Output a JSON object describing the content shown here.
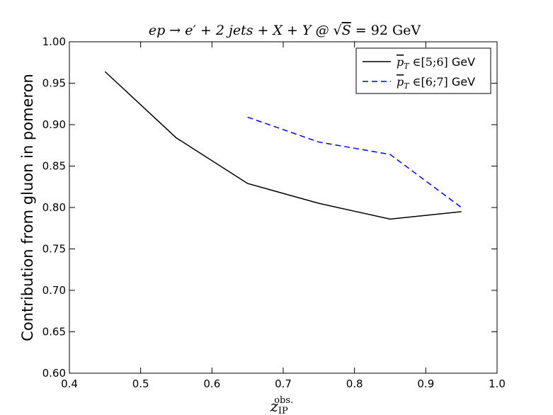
{
  "chart_data": {
    "type": "line",
    "title": "ep → e′ + 2 jets + X + Y @ √S = 92 GeV",
    "title_parts": {
      "process": "ep → e′ + 2 jets + X + Y @ ",
      "sqrt": "S",
      "energy": " = 92 GeV"
    },
    "xlabel": "z_IP^obs.",
    "xlabel_parts": {
      "base": "z",
      "sub": "IP",
      "sup": "obs."
    },
    "ylabel": "Contribution from gluon in pomeron",
    "xlim": [
      0.4,
      1.0
    ],
    "ylim": [
      0.6,
      1.0
    ],
    "x_ticks": [
      "0.4",
      "0.5",
      "0.6",
      "0.7",
      "0.8",
      "0.9",
      "1.0"
    ],
    "y_ticks": [
      "0.60",
      "0.65",
      "0.70",
      "0.75",
      "0.80",
      "0.85",
      "0.90",
      "0.95",
      "1.00"
    ],
    "x_tick_values": [
      0.4,
      0.5,
      0.6,
      0.7,
      0.8,
      0.9,
      1.0
    ],
    "y_tick_values": [
      0.6,
      0.65,
      0.7,
      0.75,
      0.8,
      0.85,
      0.9,
      0.95,
      1.0
    ],
    "grid": false,
    "legend_position": "top-right",
    "series": [
      {
        "name": "p̄_T ∈[5;6] GeV",
        "legend_parts": {
          "var": "p",
          "sub": "T",
          "range": " ∈[5;6] ",
          "unit": "GeV"
        },
        "color": "#000000",
        "dash": "solid",
        "x": [
          0.45,
          0.55,
          0.65,
          0.75,
          0.85,
          0.95
        ],
        "y": [
          0.964,
          0.884,
          0.829,
          0.805,
          0.786,
          0.795
        ]
      },
      {
        "name": "p̄_T ∈[6;7] GeV",
        "legend_parts": {
          "var": "p",
          "sub": "T",
          "range": " ∈[6;7] ",
          "unit": "GeV"
        },
        "color": "#0000ff",
        "dash": "dashed",
        "x": [
          0.65,
          0.75,
          0.85,
          0.95
        ],
        "y": [
          0.909,
          0.879,
          0.864,
          0.8
        ]
      }
    ]
  }
}
